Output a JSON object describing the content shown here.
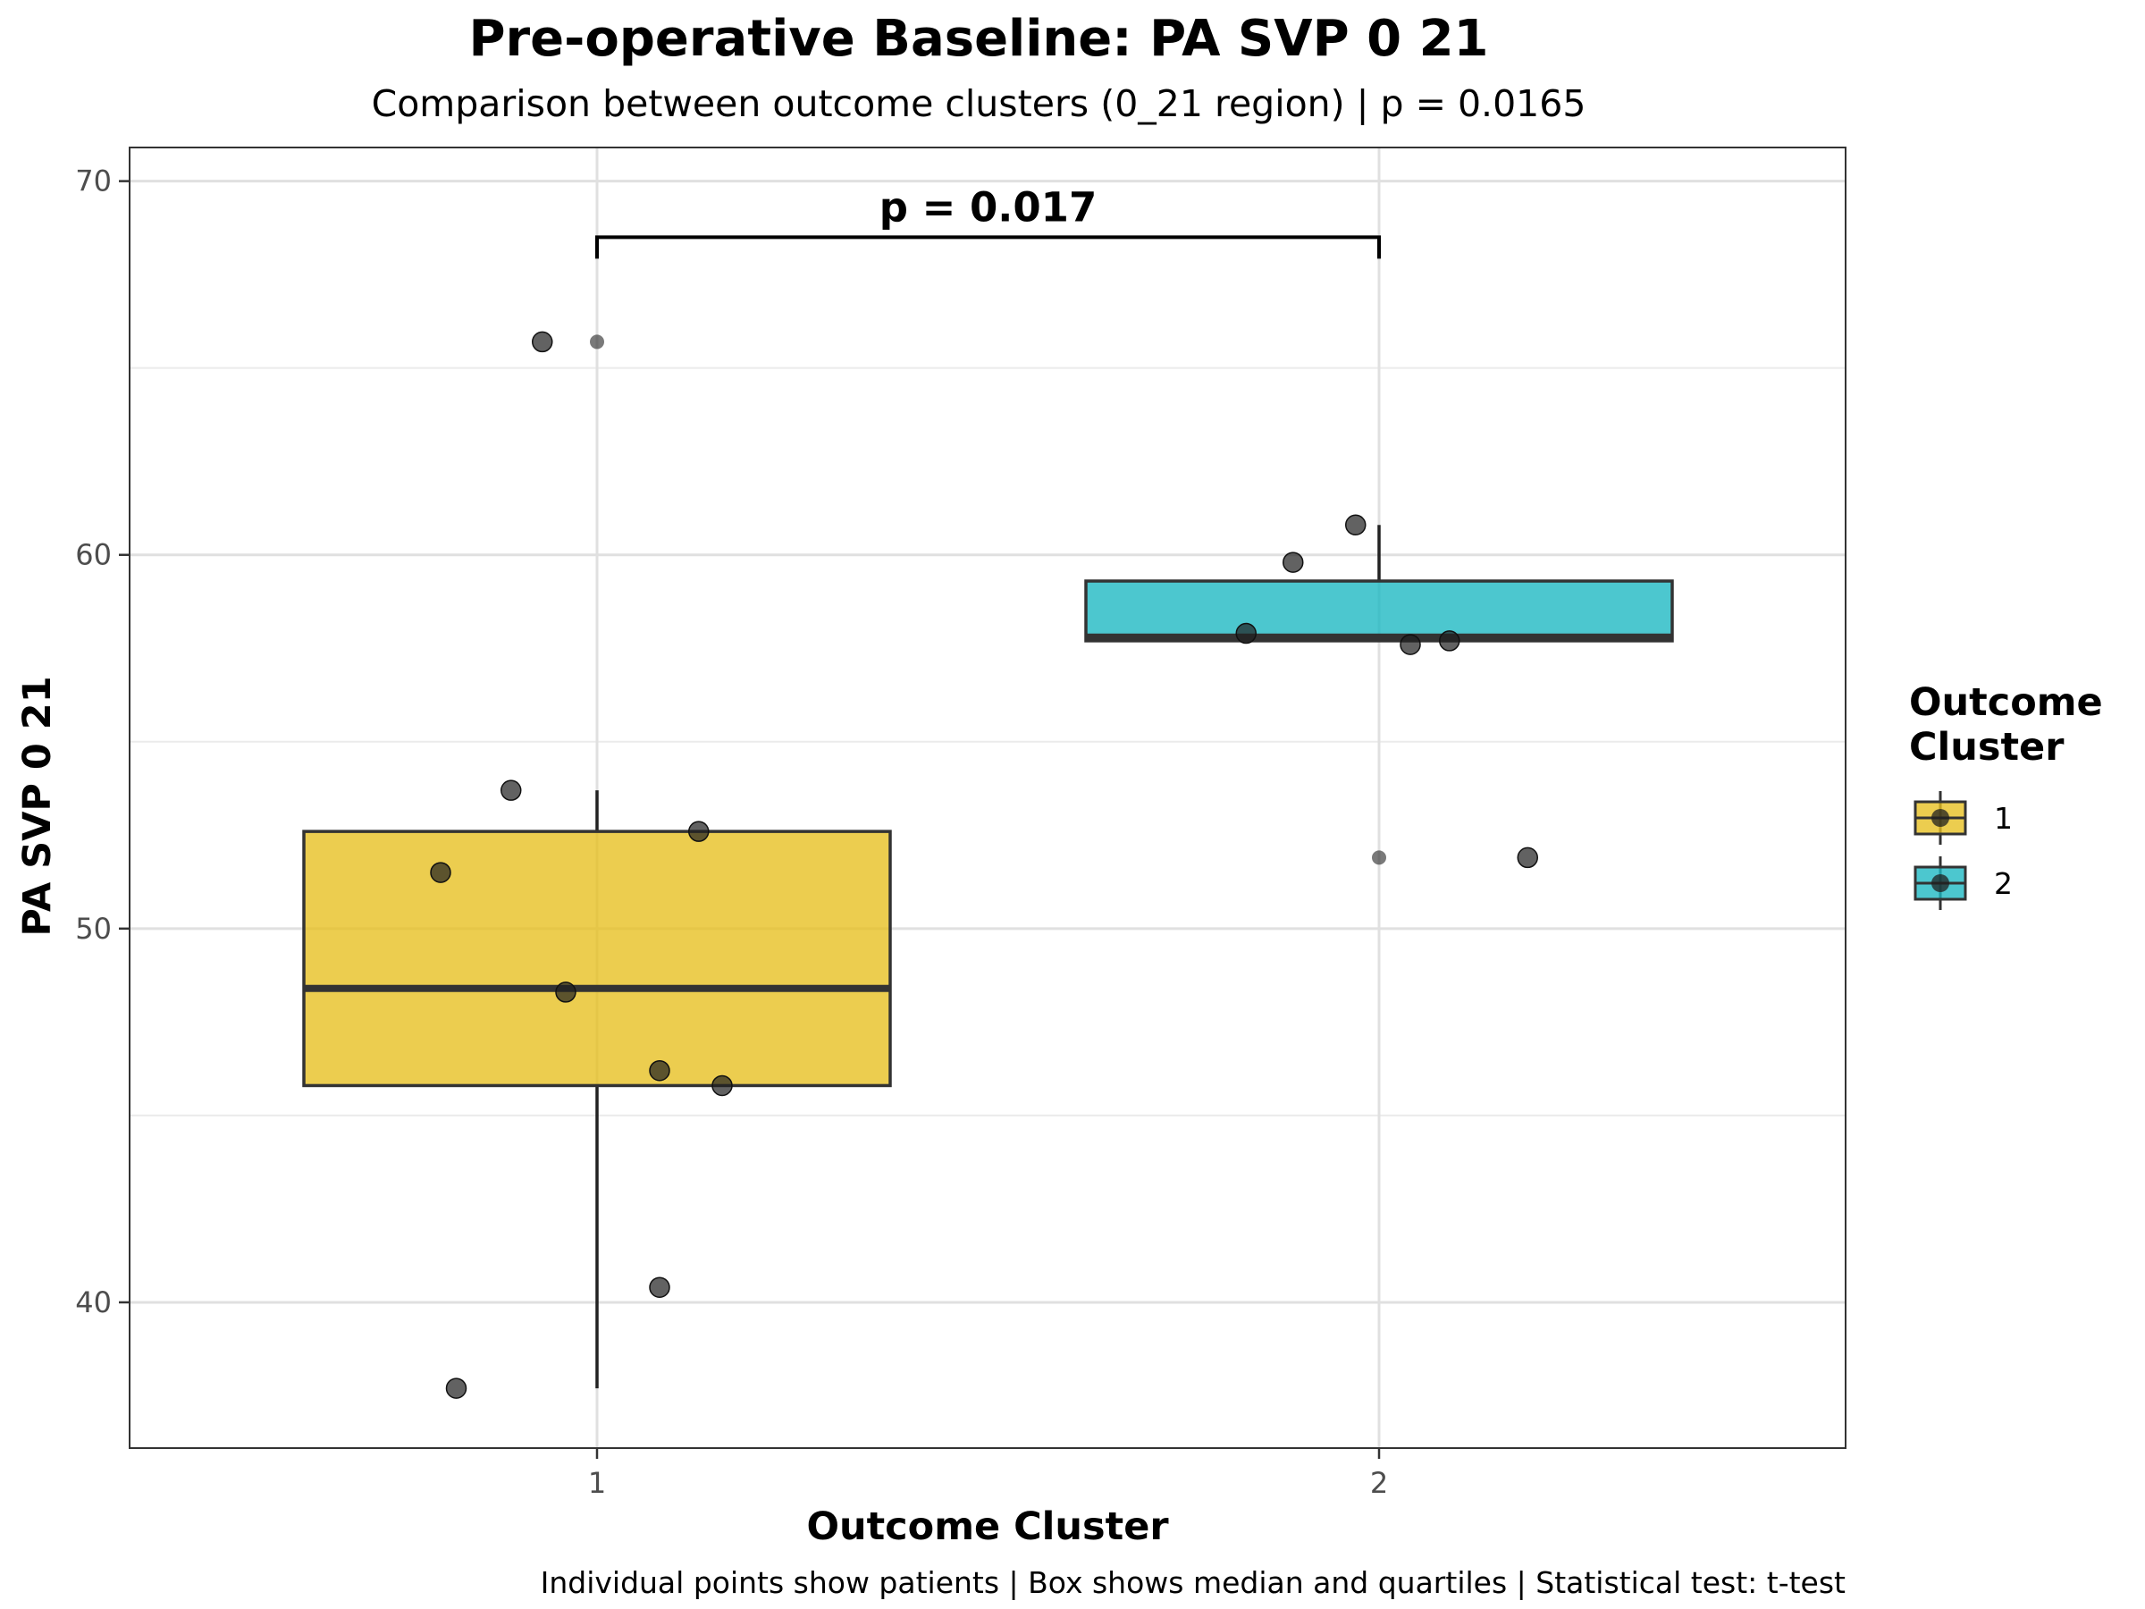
{
  "chart_data": {
    "type": "box",
    "title": "Pre-operative Baseline: PA SVP 0 21",
    "subtitle": "Comparison between outcome clusters (0_21 region) | p = 0.0165",
    "xlabel": "Outcome Cluster",
    "ylabel": "PA SVP 0 21",
    "caption": "Individual points show patients | Box shows median and quartiles | Statistical test: t-test",
    "categories": [
      "1",
      "2"
    ],
    "ylim": [
      36.1,
      70.9
    ],
    "yticks": [
      40,
      50,
      60,
      70
    ],
    "ytick_labels": [
      "40",
      "50",
      "60",
      "70"
    ],
    "grid": true,
    "legend": {
      "title_lines": [
        "Outcome",
        "Cluster"
      ],
      "placement": "right",
      "entries": [
        {
          "label": "1",
          "color": "#E7BF1E"
        },
        {
          "label": "2",
          "color": "#19B7C2"
        }
      ]
    },
    "significance": {
      "label": "p = 0.017",
      "from": "1",
      "to": "2",
      "y": 68.5
    },
    "boxes": [
      {
        "category": "1",
        "color": "#E7BF1E",
        "q1": 45.8,
        "median": 48.4,
        "q3": 52.6,
        "whisker_low": 37.7,
        "whisker_high": 53.7,
        "outliers": [
          65.7
        ]
      },
      {
        "category": "2",
        "color": "#19B7C2",
        "q1": 57.7,
        "median": 57.8,
        "q3": 59.3,
        "whisker_low": 57.7,
        "whisker_high": 60.8,
        "outliers": [
          51.9
        ]
      }
    ],
    "points": [
      {
        "category": "1",
        "jitter": -0.18,
        "value": 37.7
      },
      {
        "category": "1",
        "jitter": 0.08,
        "value": 40.4
      },
      {
        "category": "1",
        "jitter": 0.16,
        "value": 45.8
      },
      {
        "category": "1",
        "jitter": 0.08,
        "value": 46.2
      },
      {
        "category": "1",
        "jitter": -0.04,
        "value": 48.3
      },
      {
        "category": "1",
        "jitter": -0.2,
        "value": 51.5
      },
      {
        "category": "1",
        "jitter": 0.13,
        "value": 52.6
      },
      {
        "category": "1",
        "jitter": -0.11,
        "value": 53.7
      },
      {
        "category": "1",
        "jitter": -0.07,
        "value": 65.7
      },
      {
        "category": "2",
        "jitter": -0.17,
        "value": 57.9
      },
      {
        "category": "2",
        "jitter": 0.04,
        "value": 57.6
      },
      {
        "category": "2",
        "jitter": 0.09,
        "value": 57.7
      },
      {
        "category": "2",
        "jitter": -0.11,
        "value": 59.8
      },
      {
        "category": "2",
        "jitter": -0.03,
        "value": 60.8
      },
      {
        "category": "2",
        "jitter": 0.19,
        "value": 51.9
      }
    ]
  }
}
